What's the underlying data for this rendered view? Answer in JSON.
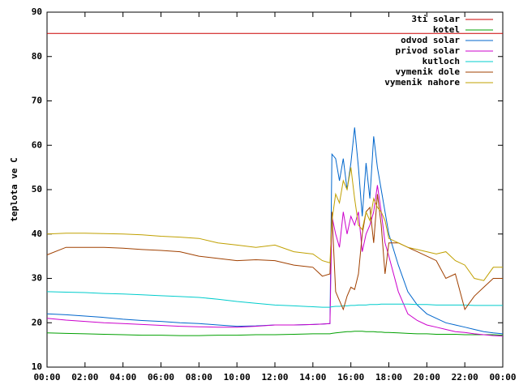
{
  "chart_data": {
    "type": "line",
    "y_label": "teplota ve C",
    "x": [
      0,
      1,
      2,
      3,
      4,
      5,
      6,
      7,
      8,
      9,
      10,
      11,
      12,
      13,
      14,
      14.5,
      14.9,
      15,
      15.2,
      15.4,
      15.6,
      15.8,
      16,
      16.2,
      16.4,
      16.6,
      16.8,
      17,
      17.2,
      17.4,
      17.6,
      17.8,
      18,
      18.5,
      19,
      19.5,
      20,
      20.5,
      21,
      21.5,
      22,
      22.5,
      23,
      23.5,
      24
    ],
    "xlim": [
      0,
      24
    ],
    "xticks": [
      {
        "value": 0,
        "label": "00:00"
      },
      {
        "value": 2,
        "label": "02:00"
      },
      {
        "value": 4,
        "label": "04:00"
      },
      {
        "value": 6,
        "label": "06:00"
      },
      {
        "value": 8,
        "label": "08:00"
      },
      {
        "value": 10,
        "label": "10:00"
      },
      {
        "value": 12,
        "label": "12:00"
      },
      {
        "value": 14,
        "label": "14:00"
      },
      {
        "value": 16,
        "label": "16:00"
      },
      {
        "value": 18,
        "label": "18:00"
      },
      {
        "value": 20,
        "label": "20:00"
      },
      {
        "value": 22,
        "label": "22:00"
      },
      {
        "value": 24,
        "label": "00:00"
      }
    ],
    "ylim": [
      10,
      90
    ],
    "yticks": [
      10,
      20,
      30,
      40,
      50,
      60,
      70,
      80,
      90
    ],
    "grid": false,
    "legend": "top-right",
    "series": [
      {
        "name": "3ti solar",
        "color": "#cc0000",
        "values": [
          85.2,
          85.2,
          85.2,
          85.2,
          85.2,
          85.2,
          85.2,
          85.2,
          85.2,
          85.2,
          85.2,
          85.2,
          85.2,
          85.2,
          85.2,
          85.2,
          85.2,
          85.2,
          85.2,
          85.2,
          85.2,
          85.2,
          85.2,
          85.2,
          85.2,
          85.2,
          85.2,
          85.2,
          85.2,
          85.2,
          85.2,
          85.2,
          85.2,
          85.2,
          85.2,
          85.2,
          85.2,
          85.2,
          85.2,
          85.2,
          85.2,
          85.2,
          85.2,
          85.2,
          85.2
        ]
      },
      {
        "name": "kotel",
        "color": "#00a000",
        "values": [
          17.7,
          17.6,
          17.5,
          17.4,
          17.3,
          17.2,
          17.2,
          17.1,
          17.1,
          17.2,
          17.2,
          17.3,
          17.3,
          17.4,
          17.5,
          17.5,
          17.5,
          17.6,
          17.7,
          17.8,
          17.9,
          18,
          18,
          18.1,
          18.1,
          18.1,
          18,
          18,
          18,
          17.9,
          17.9,
          17.8,
          17.8,
          17.7,
          17.6,
          17.5,
          17.5,
          17.4,
          17.4,
          17.4,
          17.3,
          17.3,
          17.3,
          17.3,
          17.2
        ]
      },
      {
        "name": "odvod solar",
        "color": "#0066cc",
        "values": [
          22,
          21.8,
          21.5,
          21.2,
          20.8,
          20.5,
          20.3,
          20,
          19.8,
          19.5,
          19.2,
          19.3,
          19.5,
          19.5,
          19.6,
          19.7,
          19.8,
          58,
          57,
          52,
          57,
          50,
          56,
          64,
          55,
          44,
          56,
          48,
          62,
          55,
          50,
          45,
          40,
          33,
          27,
          24,
          22,
          21,
          20,
          19.5,
          19,
          18.5,
          18,
          17.7,
          17.5
        ]
      },
      {
        "name": "privod solar",
        "color": "#cc00cc",
        "values": [
          21,
          20.6,
          20.3,
          20,
          19.8,
          19.6,
          19.4,
          19.2,
          19.1,
          19,
          19,
          19.2,
          19.5,
          19.5,
          19.6,
          19.7,
          19.8,
          44,
          40,
          37,
          45,
          40,
          44,
          42,
          45,
          36,
          40,
          42,
          45,
          51,
          45,
          38,
          35,
          27,
          22,
          20.5,
          19.5,
          19,
          18.5,
          18,
          17.8,
          17.5,
          17.3,
          17.1,
          17
        ]
      },
      {
        "name": "kutloch",
        "color": "#00cccc",
        "values": [
          27,
          26.9,
          26.8,
          26.6,
          26.5,
          26.3,
          26.1,
          25.9,
          25.7,
          25.3,
          24.8,
          24.4,
          24,
          23.8,
          23.6,
          23.5,
          23.5,
          23.6,
          23.7,
          23.7,
          23.8,
          23.8,
          23.9,
          23.9,
          24,
          24,
          24,
          24.1,
          24.1,
          24.1,
          24.2,
          24.2,
          24.2,
          24.2,
          24.2,
          24.1,
          24.1,
          24,
          24,
          24,
          24,
          23.9,
          23.9,
          23.9,
          23.9
        ]
      },
      {
        "name": "vymenik dole",
        "color": "#a04000",
        "values": [
          35.3,
          37,
          37,
          37,
          36.8,
          36.5,
          36.3,
          36,
          35,
          34.5,
          34,
          34.2,
          34,
          33,
          32.5,
          30.5,
          31,
          45,
          27,
          25,
          23,
          26,
          28,
          27.5,
          31,
          40,
          45,
          46,
          38,
          49,
          42,
          31,
          38,
          38,
          37,
          36,
          35,
          34,
          30,
          31,
          23,
          26,
          28,
          30,
          30
        ]
      },
      {
        "name": "vymenik nahore",
        "color": "#c0a000",
        "values": [
          40,
          40.2,
          40.2,
          40.1,
          40,
          39.8,
          39.5,
          39.3,
          39,
          38,
          37.5,
          37,
          37.5,
          36,
          35.5,
          34,
          33.5,
          43,
          49,
          47,
          52,
          50,
          55,
          48,
          42,
          41,
          45,
          43,
          48,
          46,
          45,
          43,
          39,
          38,
          37,
          36.5,
          36,
          35.5,
          36,
          34,
          33,
          30,
          29.5,
          32.5,
          32.5
        ]
      }
    ]
  }
}
